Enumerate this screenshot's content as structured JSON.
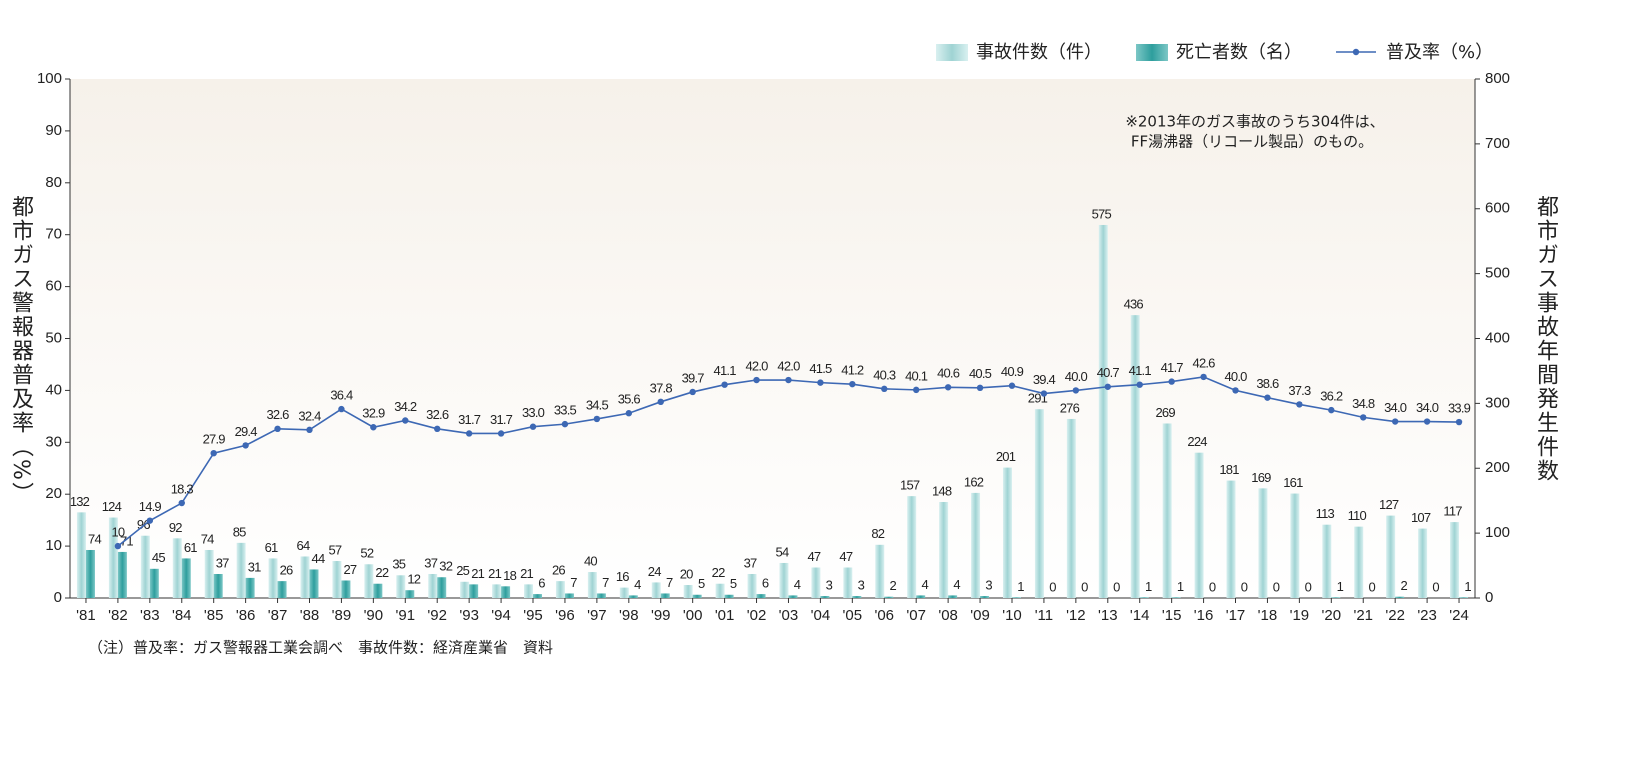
{
  "chart_data": {
    "type": "bar-line",
    "categories": [
      "'81",
      "'82",
      "'83",
      "'84",
      "'85",
      "'86",
      "'87",
      "'88",
      "'89",
      "'90",
      "'91",
      "'92",
      "'93",
      "'94",
      "'95",
      "'96",
      "'97",
      "'98",
      "'99",
      "'00",
      "'01",
      "'02",
      "'03",
      "'04",
      "'05",
      "'06",
      "'07",
      "'08",
      "'09",
      "'10",
      "'11",
      "'12",
      "'13",
      "'14",
      "'15",
      "'16",
      "'17",
      "'18",
      "'19",
      "'20",
      "'21",
      "'22",
      "'23",
      "'24"
    ],
    "series": [
      {
        "name": "事故件数（件）",
        "type": "bar",
        "axis": "y2",
        "color": "#bfe4e4",
        "values": [
          132,
          124,
          96,
          92,
          74,
          85,
          61,
          64,
          57,
          52,
          35,
          37,
          25,
          21,
          21,
          26,
          40,
          16,
          24,
          20,
          22,
          37,
          54,
          47,
          47,
          82,
          157,
          148,
          162,
          201,
          291,
          276,
          575,
          436,
          269,
          224,
          181,
          169,
          161,
          113,
          110,
          127,
          107,
          117
        ]
      },
      {
        "name": "死亡者数（名）",
        "type": "bar",
        "axis": "y2",
        "color": "#3fa9a8",
        "values": [
          74,
          71,
          45,
          61,
          37,
          31,
          26,
          44,
          27,
          22,
          12,
          32,
          21,
          18,
          6,
          7,
          7,
          4,
          7,
          5,
          5,
          6,
          4,
          3,
          3,
          2,
          4,
          4,
          3,
          1,
          0,
          0,
          0,
          1,
          1,
          0,
          0,
          0,
          0,
          1,
          0,
          2,
          0,
          1
        ]
      },
      {
        "name": "普及率（%）",
        "type": "line",
        "axis": "y",
        "color": "#3d68b4",
        "values": [
          null,
          10,
          14.9,
          18.3,
          27.9,
          29.4,
          32.6,
          32.4,
          36.4,
          32.9,
          34.2,
          32.6,
          31.7,
          31.7,
          33.0,
          33.5,
          34.5,
          35.6,
          37.8,
          39.7,
          41.1,
          42.0,
          42.0,
          41.5,
          41.2,
          40.3,
          40.1,
          40.6,
          40.5,
          40.9,
          39.4,
          40.0,
          40.7,
          41.1,
          41.7,
          42.6,
          40.0,
          38.6,
          37.3,
          36.2,
          34.8,
          34.0,
          34.0,
          33.9
        ],
        "value_labels": [
          null,
          "10",
          "14.9",
          "18.3",
          "27.9",
          "29.4",
          "32.6",
          "32.4",
          "36.4",
          "32.9",
          "34.2",
          "32.6",
          "31.7",
          "31.7",
          "33.0",
          "33.5",
          "34.5",
          "35.6",
          "37.8",
          "39.7",
          "41.1",
          "42.0",
          "42.0",
          "41.5",
          "41.2",
          "40.3",
          "40.1",
          "40.6",
          "40.5",
          "40.9",
          "39.4",
          "40.0",
          "40.7",
          "41.1",
          "41.7",
          "42.6",
          "40.0",
          "38.6",
          "37.3",
          "36.2",
          "34.8",
          "34.0",
          "34.0",
          "33.9"
        ]
      }
    ],
    "y_label": "都市ガス警報器普及率（%）",
    "y2_label": "都市ガス事故年間発生件数",
    "ylim": [
      0,
      100
    ],
    "yticks": [
      0,
      10,
      20,
      30,
      40,
      50,
      60,
      70,
      80,
      90,
      100
    ],
    "y2lim": [
      0,
      800
    ],
    "y2ticks": [
      0,
      100,
      200,
      300,
      400,
      500,
      600,
      700,
      800
    ],
    "annotations": [
      "※2013年のガス事故のうち304件は、",
      "FF湯沸器（リコール製品）のもの。"
    ],
    "note": "（注）普及率：ガス警報器工業会調べ　事故件数：経済産業省　資料",
    "legend": "top-right"
  }
}
